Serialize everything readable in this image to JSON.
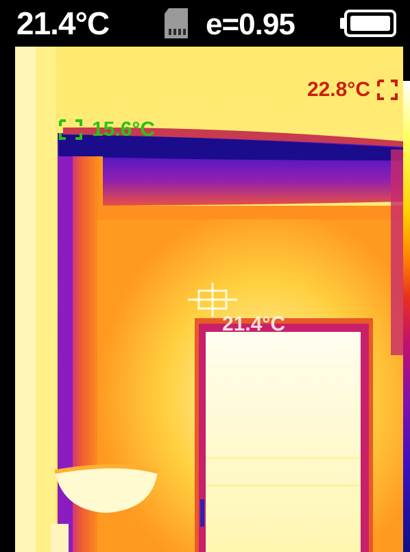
{
  "status_bar": {
    "center_temperature": "21.4°C",
    "emissivity": "e=0.95",
    "sd_card_icon": "sd-card-icon",
    "battery_icon": "battery-icon"
  },
  "markers": {
    "max": {
      "label": "22.8°C",
      "color": "#c8200a",
      "icon": "max-bracket-icon"
    },
    "min": {
      "label": "15.6°C",
      "color": "#2ac21a",
      "icon": "min-bracket-icon"
    },
    "center": {
      "label": "21.4°C",
      "color": "#ffffff",
      "icon": "crosshair-icon"
    }
  },
  "palette": {
    "name": "iron",
    "colors": [
      "#ffffff",
      "#ffff60",
      "#ffd000",
      "#ff8000",
      "#e83020",
      "#c01070",
      "#8010b0",
      "#3a10c0",
      "#10108a"
    ]
  }
}
